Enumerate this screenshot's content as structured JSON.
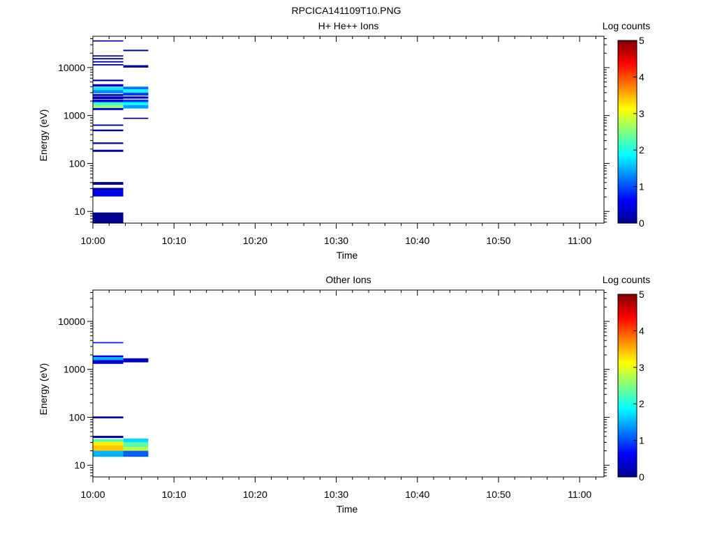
{
  "figure_title": "RPCICA141109T10.PNG",
  "chart_data": [
    {
      "type": "heatmap",
      "title": "H+ He++ Ions",
      "xlabel": "Time",
      "ylabel": "Energy (eV)",
      "y_scale": "log",
      "ylim": [
        5.7,
        45000
      ],
      "x_range": [
        "10:00",
        "11:03"
      ],
      "x_ticks": [
        "10:00",
        "10:10",
        "10:20",
        "10:30",
        "10:40",
        "10:50",
        "11:00"
      ],
      "y_ticks": [
        "10",
        "100",
        "1000",
        "10000"
      ],
      "colorbar": {
        "label": "Log counts",
        "range": [
          0,
          5
        ],
        "ticks": [
          "0",
          "1",
          "2",
          "3",
          "4",
          "5"
        ]
      },
      "cells": [
        {
          "t_start": "10:00:00",
          "t_end": "10:03:45",
          "e_low": 35000,
          "e_high": 37000,
          "value": 0.2
        },
        {
          "t_start": "10:00:00",
          "t_end": "10:03:45",
          "e_low": 17000,
          "e_high": 18000,
          "value": 0.2
        },
        {
          "t_start": "10:00:00",
          "t_end": "10:03:45",
          "e_low": 14800,
          "e_high": 15800,
          "value": 0.2
        },
        {
          "t_start": "10:00:00",
          "t_end": "10:03:45",
          "e_low": 12800,
          "e_high": 13600,
          "value": 0.2
        },
        {
          "t_start": "10:00:00",
          "t_end": "10:03:45",
          "e_low": 11100,
          "e_high": 11800,
          "value": 0.2
        },
        {
          "t_start": "10:00:00",
          "t_end": "10:03:45",
          "e_low": 5200,
          "e_high": 5600,
          "value": 0.2
        },
        {
          "t_start": "10:00:00",
          "t_end": "10:03:45",
          "e_low": 4000,
          "e_high": 4500,
          "value": 0.3
        },
        {
          "t_start": "10:00:00",
          "t_end": "10:03:45",
          "e_low": 3400,
          "e_high": 3900,
          "value": 1.8
        },
        {
          "t_start": "10:00:00",
          "t_end": "10:03:45",
          "e_low": 2900,
          "e_high": 3400,
          "value": 1.3
        },
        {
          "t_start": "10:00:00",
          "t_end": "10:03:45",
          "e_low": 2550,
          "e_high": 2800,
          "value": 0.4
        },
        {
          "t_start": "10:00:00",
          "t_end": "10:03:45",
          "e_low": 2200,
          "e_high": 2500,
          "value": 0.2
        },
        {
          "t_start": "10:00:00",
          "t_end": "10:03:45",
          "e_low": 1900,
          "e_high": 2150,
          "value": 0.6
        },
        {
          "t_start": "10:00:00",
          "t_end": "10:03:45",
          "e_low": 1650,
          "e_high": 1900,
          "value": 2.1
        },
        {
          "t_start": "10:00:00",
          "t_end": "10:03:45",
          "e_low": 1430,
          "e_high": 1650,
          "value": 2.6
        },
        {
          "t_start": "10:00:00",
          "t_end": "10:03:45",
          "e_low": 1300,
          "e_high": 1430,
          "value": 0.5
        },
        {
          "t_start": "10:00:00",
          "t_end": "10:03:45",
          "e_low": 610,
          "e_high": 650,
          "value": 0.2
        },
        {
          "t_start": "10:00:00",
          "t_end": "10:03:45",
          "e_low": 470,
          "e_high": 510,
          "value": 0.2
        },
        {
          "t_start": "10:00:00",
          "t_end": "10:03:45",
          "e_low": 255,
          "e_high": 275,
          "value": 0.2
        },
        {
          "t_start": "10:00:00",
          "t_end": "10:03:45",
          "e_low": 175,
          "e_high": 193,
          "value": 0.2
        },
        {
          "t_start": "10:00:00",
          "t_end": "10:03:45",
          "e_low": 36,
          "e_high": 41,
          "value": 0.2
        },
        {
          "t_start": "10:00:00",
          "t_end": "10:03:45",
          "e_low": 27,
          "e_high": 31,
          "value": 0.3
        },
        {
          "t_start": "10:00:00",
          "t_end": "10:03:45",
          "e_low": 20.5,
          "e_high": 27,
          "value": 0.6
        },
        {
          "t_start": "10:00:00",
          "t_end": "10:03:45",
          "e_low": 5.7,
          "e_high": 9.5,
          "value": 0.1
        },
        {
          "t_start": "10:03:45",
          "t_end": "10:06:50",
          "e_low": 22000,
          "e_high": 23500,
          "value": 0.2
        },
        {
          "t_start": "10:03:45",
          "t_end": "10:06:50",
          "e_low": 10000,
          "e_high": 11200,
          "value": 0.2
        },
        {
          "t_start": "10:03:45",
          "t_end": "10:06:50",
          "e_low": 3500,
          "e_high": 4000,
          "value": 1.2
        },
        {
          "t_start": "10:03:45",
          "t_end": "10:06:50",
          "e_low": 3000,
          "e_high": 3500,
          "value": 1.9
        },
        {
          "t_start": "10:03:45",
          "t_end": "10:06:50",
          "e_low": 2600,
          "e_high": 3000,
          "value": 0.9
        },
        {
          "t_start": "10:03:45",
          "t_end": "10:06:50",
          "e_low": 2250,
          "e_high": 2500,
          "value": 0.3
        },
        {
          "t_start": "10:03:45",
          "t_end": "10:06:50",
          "e_low": 1900,
          "e_high": 2150,
          "value": 0.9
        },
        {
          "t_start": "10:03:45",
          "t_end": "10:06:50",
          "e_low": 1650,
          "e_high": 1900,
          "value": 1.9
        },
        {
          "t_start": "10:03:45",
          "t_end": "10:06:50",
          "e_low": 1400,
          "e_high": 1650,
          "value": 1.4
        },
        {
          "t_start": "10:03:45",
          "t_end": "10:06:50",
          "e_low": 850,
          "e_high": 900,
          "value": 0.2
        }
      ]
    },
    {
      "type": "heatmap",
      "title": "Other Ions",
      "xlabel": "Time",
      "ylabel": "Energy (eV)",
      "y_scale": "log",
      "ylim": [
        5.7,
        45000
      ],
      "x_range": [
        "10:00",
        "11:03"
      ],
      "x_ticks": [
        "10:00",
        "10:10",
        "10:20",
        "10:30",
        "10:40",
        "10:50",
        "11:00"
      ],
      "y_ticks": [
        "10",
        "100",
        "1000",
        "10000"
      ],
      "colorbar": {
        "label": "Log counts",
        "range": [
          0,
          5
        ],
        "ticks": [
          "0",
          "1",
          "2",
          "3",
          "4",
          "5"
        ]
      },
      "cells": [
        {
          "t_start": "10:00:00",
          "t_end": "10:03:45",
          "e_low": 3500,
          "e_high": 3700,
          "value": 0.7
        },
        {
          "t_start": "10:00:00",
          "t_end": "10:03:45",
          "e_low": 1800,
          "e_high": 1950,
          "value": 0.5
        },
        {
          "t_start": "10:00:00",
          "t_end": "10:03:45",
          "e_low": 1560,
          "e_high": 1800,
          "value": 1.5
        },
        {
          "t_start": "10:00:00",
          "t_end": "10:03:45",
          "e_low": 1300,
          "e_high": 1560,
          "value": 0.4
        },
        {
          "t_start": "10:00:00",
          "t_end": "10:03:45",
          "e_low": 95,
          "e_high": 104,
          "value": 0.2
        },
        {
          "t_start": "10:00:00",
          "t_end": "10:03:45",
          "e_low": 37,
          "e_high": 41,
          "value": 0.2
        },
        {
          "t_start": "10:00:00",
          "t_end": "10:03:45",
          "e_low": 31,
          "e_high": 35,
          "value": 2.2
        },
        {
          "t_start": "10:00:00",
          "t_end": "10:03:45",
          "e_low": 26,
          "e_high": 31,
          "value": 3.2
        },
        {
          "t_start": "10:00:00",
          "t_end": "10:03:45",
          "e_low": 20,
          "e_high": 26,
          "value": 3.4
        },
        {
          "t_start": "10:00:00",
          "t_end": "10:03:45",
          "e_low": 15,
          "e_high": 20,
          "value": 1.5
        },
        {
          "t_start": "10:03:45",
          "t_end": "10:06:50",
          "e_low": 1400,
          "e_high": 1700,
          "value": 0.3
        },
        {
          "t_start": "10:03:45",
          "t_end": "10:06:50",
          "e_low": 30,
          "e_high": 36,
          "value": 1.7
        },
        {
          "t_start": "10:03:45",
          "t_end": "10:06:50",
          "e_low": 24,
          "e_high": 30,
          "value": 2.3
        },
        {
          "t_start": "10:03:45",
          "t_end": "10:06:50",
          "e_low": 20,
          "e_high": 24,
          "value": 2.8
        },
        {
          "t_start": "10:03:45",
          "t_end": "10:06:50",
          "e_low": 15,
          "e_high": 20,
          "value": 1.1
        }
      ]
    }
  ]
}
